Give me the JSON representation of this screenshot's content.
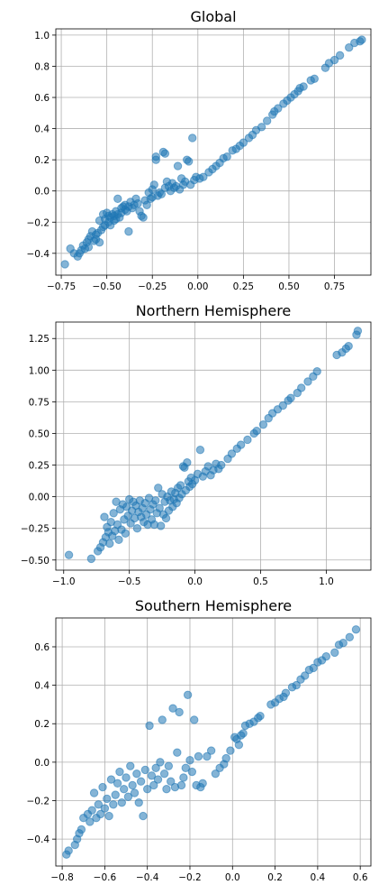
{
  "chart_data": [
    {
      "type": "scatter",
      "title": "Global",
      "xlim": [
        -0.78,
        0.95
      ],
      "ylim": [
        -0.54,
        1.04
      ],
      "xticks": [
        -0.75,
        -0.5,
        -0.25,
        0.0,
        0.25,
        0.5,
        0.75
      ],
      "xtick_labels": [
        "−0.75",
        "−0.50",
        "−0.25",
        "0.00",
        "0.25",
        "0.50",
        "0.75"
      ],
      "yticks": [
        -0.4,
        -0.2,
        0.0,
        0.2,
        0.4,
        0.6,
        0.8,
        1.0
      ],
      "ytick_labels": [
        "−0.4",
        "−0.2",
        "0.0",
        "0.2",
        "0.4",
        "0.6",
        "0.8",
        "1.0"
      ],
      "grid": true,
      "color": "#1f77b4",
      "points": [
        [
          -0.73,
          -0.47
        ],
        [
          -0.7,
          -0.37
        ],
        [
          -0.68,
          -0.4
        ],
        [
          -0.66,
          -0.42
        ],
        [
          -0.65,
          -0.4
        ],
        [
          -0.64,
          -0.38
        ],
        [
          -0.63,
          -0.35
        ],
        [
          -0.62,
          -0.37
        ],
        [
          -0.61,
          -0.33
        ],
        [
          -0.6,
          -0.36
        ],
        [
          -0.6,
          -0.31
        ],
        [
          -0.59,
          -0.29
        ],
        [
          -0.58,
          -0.26
        ],
        [
          -0.57,
          -0.32
        ],
        [
          -0.56,
          -0.28
        ],
        [
          -0.56,
          -0.31
        ],
        [
          -0.55,
          -0.27
        ],
        [
          -0.54,
          -0.19
        ],
        [
          -0.54,
          -0.33
        ],
        [
          -0.53,
          -0.25
        ],
        [
          -0.52,
          -0.23
        ],
        [
          -0.52,
          -0.15
        ],
        [
          -0.51,
          -0.22
        ],
        [
          -0.51,
          -0.18
        ],
        [
          -0.5,
          -0.14
        ],
        [
          -0.49,
          -0.16
        ],
        [
          -0.49,
          -0.2
        ],
        [
          -0.48,
          -0.17
        ],
        [
          -0.48,
          -0.22
        ],
        [
          -0.47,
          -0.15
        ],
        [
          -0.46,
          -0.19
        ],
        [
          -0.46,
          -0.16
        ],
        [
          -0.45,
          -0.18
        ],
        [
          -0.45,
          -0.13
        ],
        [
          -0.44,
          -0.15
        ],
        [
          -0.44,
          -0.05
        ],
        [
          -0.43,
          -0.17
        ],
        [
          -0.42,
          -0.14
        ],
        [
          -0.42,
          -0.11
        ],
        [
          -0.41,
          -0.1
        ],
        [
          -0.4,
          -0.12
        ],
        [
          -0.4,
          -0.09
        ],
        [
          -0.39,
          -0.13
        ],
        [
          -0.38,
          -0.26
        ],
        [
          -0.38,
          -0.1
        ],
        [
          -0.37,
          -0.07
        ],
        [
          -0.36,
          -0.11
        ],
        [
          -0.35,
          -0.09
        ],
        [
          -0.34,
          -0.05
        ],
        [
          -0.33,
          -0.08
        ],
        [
          -0.32,
          -0.13
        ],
        [
          -0.31,
          -0.16
        ],
        [
          -0.3,
          -0.17
        ],
        [
          -0.29,
          -0.06
        ],
        [
          -0.28,
          -0.09
        ],
        [
          -0.27,
          -0.01
        ],
        [
          -0.26,
          -0.05
        ],
        [
          -0.25,
          0.01
        ],
        [
          -0.25,
          -0.04
        ],
        [
          -0.24,
          0.04
        ],
        [
          -0.23,
          0.2
        ],
        [
          -0.23,
          0.22
        ],
        [
          -0.22,
          -0.03
        ],
        [
          -0.21,
          -0.01
        ],
        [
          -0.2,
          -0.02
        ],
        [
          -0.19,
          0.25
        ],
        [
          -0.18,
          0.24
        ],
        [
          -0.18,
          0.02
        ],
        [
          -0.17,
          0.06
        ],
        [
          -0.16,
          0.03
        ],
        [
          -0.15,
          0.0
        ],
        [
          -0.14,
          0.05
        ],
        [
          -0.13,
          0.02
        ],
        [
          -0.12,
          0.03
        ],
        [
          -0.11,
          0.16
        ],
        [
          -0.1,
          0.01
        ],
        [
          -0.09,
          0.08
        ],
        [
          -0.08,
          0.04
        ],
        [
          -0.07,
          0.06
        ],
        [
          -0.06,
          0.2
        ],
        [
          -0.05,
          0.19
        ],
        [
          -0.04,
          0.04
        ],
        [
          -0.03,
          0.34
        ],
        [
          -0.02,
          0.07
        ],
        [
          -0.01,
          0.09
        ],
        [
          0.01,
          0.08
        ],
        [
          0.03,
          0.09
        ],
        [
          0.06,
          0.12
        ],
        [
          0.08,
          0.14
        ],
        [
          0.1,
          0.16
        ],
        [
          0.12,
          0.18
        ],
        [
          0.14,
          0.21
        ],
        [
          0.16,
          0.22
        ],
        [
          0.19,
          0.26
        ],
        [
          0.21,
          0.27
        ],
        [
          0.23,
          0.29
        ],
        [
          0.25,
          0.31
        ],
        [
          0.28,
          0.34
        ],
        [
          0.3,
          0.36
        ],
        [
          0.32,
          0.39
        ],
        [
          0.35,
          0.41
        ],
        [
          0.38,
          0.45
        ],
        [
          0.41,
          0.49
        ],
        [
          0.42,
          0.51
        ],
        [
          0.44,
          0.53
        ],
        [
          0.47,
          0.56
        ],
        [
          0.49,
          0.58
        ],
        [
          0.51,
          0.6
        ],
        [
          0.53,
          0.62
        ],
        [
          0.55,
          0.64
        ],
        [
          0.56,
          0.66
        ],
        [
          0.58,
          0.67
        ],
        [
          0.62,
          0.71
        ],
        [
          0.64,
          0.72
        ],
        [
          0.7,
          0.79
        ],
        [
          0.72,
          0.82
        ],
        [
          0.75,
          0.84
        ],
        [
          0.78,
          0.87
        ],
        [
          0.83,
          0.92
        ],
        [
          0.86,
          0.95
        ],
        [
          0.89,
          0.96
        ],
        [
          0.9,
          0.97
        ]
      ]
    },
    {
      "type": "scatter",
      "title": "Northern Hemisphere",
      "xlim": [
        -1.06,
        1.34
      ],
      "ylim": [
        -0.58,
        1.38
      ],
      "xticks": [
        -1.0,
        -0.5,
        0.0,
        0.5,
        1.0
      ],
      "xtick_labels": [
        "−1.0",
        "−0.5",
        "0.0",
        "0.5",
        "1.0"
      ],
      "yticks": [
        -0.5,
        -0.25,
        0.0,
        0.25,
        0.5,
        0.75,
        1.0,
        1.25
      ],
      "ytick_labels": [
        "−0.50",
        "−0.25",
        "0.00",
        "0.25",
        "0.50",
        "0.75",
        "1.00",
        "1.25"
      ],
      "grid": true,
      "color": "#1f77b4",
      "points": [
        [
          -0.96,
          -0.46
        ],
        [
          -0.79,
          -0.49
        ],
        [
          -0.74,
          -0.43
        ],
        [
          -0.72,
          -0.4
        ],
        [
          -0.7,
          -0.36
        ],
        [
          -0.69,
          -0.16
        ],
        [
          -0.68,
          -0.32
        ],
        [
          -0.67,
          -0.24
        ],
        [
          -0.66,
          -0.28
        ],
        [
          -0.65,
          -0.37
        ],
        [
          -0.64,
          -0.2
        ],
        [
          -0.63,
          -0.31
        ],
        [
          -0.62,
          -0.13
        ],
        [
          -0.61,
          -0.27
        ],
        [
          -0.6,
          -0.04
        ],
        [
          -0.59,
          -0.22
        ],
        [
          -0.58,
          -0.34
        ],
        [
          -0.57,
          -0.1
        ],
        [
          -0.56,
          -0.26
        ],
        [
          -0.55,
          -0.06
        ],
        [
          -0.54,
          -0.18
        ],
        [
          -0.53,
          -0.29
        ],
        [
          -0.52,
          -0.08
        ],
        [
          -0.51,
          -0.15
        ],
        [
          -0.5,
          -0.02
        ],
        [
          -0.49,
          -0.21
        ],
        [
          -0.48,
          -0.11
        ],
        [
          -0.47,
          -0.04
        ],
        [
          -0.46,
          -0.17
        ],
        [
          -0.45,
          -0.07
        ],
        [
          -0.44,
          -0.25
        ],
        [
          -0.43,
          -0.12
        ],
        [
          -0.42,
          -0.03
        ],
        [
          -0.41,
          -0.16
        ],
        [
          -0.4,
          -0.09
        ],
        [
          -0.39,
          -0.2
        ],
        [
          -0.38,
          -0.05
        ],
        [
          -0.37,
          -0.14
        ],
        [
          -0.36,
          -0.22
        ],
        [
          -0.35,
          -0.01
        ],
        [
          -0.34,
          -0.1
        ],
        [
          -0.33,
          -0.18
        ],
        [
          -0.32,
          -0.06
        ],
        [
          -0.31,
          -0.22
        ],
        [
          -0.3,
          -0.03
        ],
        [
          -0.29,
          -0.13
        ],
        [
          -0.28,
          0.07
        ],
        [
          -0.27,
          -0.09
        ],
        [
          -0.26,
          -0.23
        ],
        [
          -0.25,
          0.02
        ],
        [
          -0.24,
          -0.14
        ],
        [
          -0.23,
          -0.04
        ],
        [
          -0.22,
          -0.17
        ],
        [
          -0.21,
          0.0
        ],
        [
          -0.2,
          -0.11
        ],
        [
          -0.19,
          -0.03
        ],
        [
          -0.18,
          0.04
        ],
        [
          -0.17,
          -0.08
        ],
        [
          -0.16,
          -0.02
        ],
        [
          -0.15,
          0.03
        ],
        [
          -0.14,
          -0.05
        ],
        [
          -0.13,
          0.07
        ],
        [
          -0.12,
          -0.01
        ],
        [
          -0.11,
          0.09
        ],
        [
          -0.1,
          0.02
        ],
        [
          -0.09,
          0.24
        ],
        [
          -0.08,
          0.23
        ],
        [
          -0.07,
          0.05
        ],
        [
          -0.06,
          0.27
        ],
        [
          -0.05,
          0.12
        ],
        [
          -0.04,
          0.08
        ],
        [
          -0.03,
          0.15
        ],
        [
          -0.02,
          0.1
        ],
        [
          0.0,
          0.13
        ],
        [
          0.02,
          0.18
        ],
        [
          0.04,
          0.37
        ],
        [
          0.06,
          0.16
        ],
        [
          0.08,
          0.2
        ],
        [
          0.1,
          0.24
        ],
        [
          0.12,
          0.17
        ],
        [
          0.14,
          0.21
        ],
        [
          0.16,
          0.26
        ],
        [
          0.18,
          0.22
        ],
        [
          0.2,
          0.25
        ],
        [
          0.25,
          0.3
        ],
        [
          0.28,
          0.34
        ],
        [
          0.32,
          0.38
        ],
        [
          0.35,
          0.41
        ],
        [
          0.4,
          0.45
        ],
        [
          0.45,
          0.5
        ],
        [
          0.47,
          0.52
        ],
        [
          0.52,
          0.57
        ],
        [
          0.56,
          0.62
        ],
        [
          0.59,
          0.66
        ],
        [
          0.63,
          0.69
        ],
        [
          0.67,
          0.72
        ],
        [
          0.71,
          0.76
        ],
        [
          0.73,
          0.78
        ],
        [
          0.78,
          0.82
        ],
        [
          0.81,
          0.86
        ],
        [
          0.86,
          0.91
        ],
        [
          0.9,
          0.95
        ],
        [
          0.93,
          0.99
        ],
        [
          1.08,
          1.12
        ],
        [
          1.12,
          1.14
        ],
        [
          1.15,
          1.17
        ],
        [
          1.17,
          1.19
        ],
        [
          1.23,
          1.28
        ],
        [
          1.24,
          1.31
        ]
      ]
    },
    {
      "type": "scatter",
      "title": "Southern Hemisphere",
      "xlim": [
        -0.83,
        0.65
      ],
      "ylim": [
        -0.54,
        0.75
      ],
      "xticks": [
        -0.8,
        -0.6,
        -0.4,
        -0.2,
        0.0,
        0.2,
        0.4,
        0.6
      ],
      "xtick_labels": [
        "−0.8",
        "−0.6",
        "−0.4",
        "−0.2",
        "0.0",
        "0.2",
        "0.4",
        "0.6"
      ],
      "yticks": [
        -0.4,
        -0.2,
        0.0,
        0.2,
        0.4,
        0.6
      ],
      "ytick_labels": [
        "−0.4",
        "−0.2",
        "0.0",
        "0.2",
        "0.4",
        "0.6"
      ],
      "grid": true,
      "color": "#1f77b4",
      "points": [
        [
          -0.78,
          -0.48
        ],
        [
          -0.77,
          -0.46
        ],
        [
          -0.74,
          -0.43
        ],
        [
          -0.73,
          -0.4
        ],
        [
          -0.72,
          -0.37
        ],
        [
          -0.71,
          -0.35
        ],
        [
          -0.7,
          -0.29
        ],
        [
          -0.68,
          -0.27
        ],
        [
          -0.67,
          -0.31
        ],
        [
          -0.66,
          -0.25
        ],
        [
          -0.65,
          -0.16
        ],
        [
          -0.64,
          -0.29
        ],
        [
          -0.63,
          -0.22
        ],
        [
          -0.62,
          -0.27
        ],
        [
          -0.61,
          -0.13
        ],
        [
          -0.6,
          -0.24
        ],
        [
          -0.59,
          -0.19
        ],
        [
          -0.58,
          -0.28
        ],
        [
          -0.57,
          -0.09
        ],
        [
          -0.56,
          -0.22
        ],
        [
          -0.55,
          -0.17
        ],
        [
          -0.54,
          -0.11
        ],
        [
          -0.53,
          -0.05
        ],
        [
          -0.52,
          -0.21
        ],
        [
          -0.51,
          -0.14
        ],
        [
          -0.5,
          -0.08
        ],
        [
          -0.49,
          -0.18
        ],
        [
          -0.48,
          -0.02
        ],
        [
          -0.47,
          -0.12
        ],
        [
          -0.46,
          -0.16
        ],
        [
          -0.45,
          -0.06
        ],
        [
          -0.44,
          -0.21
        ],
        [
          -0.43,
          -0.1
        ],
        [
          -0.42,
          -0.28
        ],
        [
          -0.41,
          -0.04
        ],
        [
          -0.4,
          -0.14
        ],
        [
          -0.39,
          0.19
        ],
        [
          -0.38,
          -0.07
        ],
        [
          -0.37,
          -0.12
        ],
        [
          -0.36,
          -0.03
        ],
        [
          -0.35,
          -0.09
        ],
        [
          -0.34,
          0.0
        ],
        [
          -0.33,
          0.22
        ],
        [
          -0.32,
          -0.06
        ],
        [
          -0.31,
          -0.14
        ],
        [
          -0.3,
          -0.02
        ],
        [
          -0.29,
          -0.1
        ],
        [
          -0.28,
          0.28
        ],
        [
          -0.27,
          -0.13
        ],
        [
          -0.26,
          0.05
        ],
        [
          -0.25,
          0.26
        ],
        [
          -0.24,
          -0.12
        ],
        [
          -0.23,
          -0.08
        ],
        [
          -0.22,
          -0.03
        ],
        [
          -0.21,
          0.35
        ],
        [
          -0.2,
          0.01
        ],
        [
          -0.19,
          -0.05
        ],
        [
          -0.18,
          0.22
        ],
        [
          -0.17,
          -0.12
        ],
        [
          -0.16,
          0.03
        ],
        [
          -0.15,
          -0.13
        ],
        [
          -0.14,
          -0.11
        ],
        [
          -0.12,
          0.03
        ],
        [
          -0.1,
          0.06
        ],
        [
          -0.08,
          -0.06
        ],
        [
          -0.06,
          -0.03
        ],
        [
          -0.04,
          -0.01
        ],
        [
          -0.03,
          0.02
        ],
        [
          -0.01,
          0.06
        ],
        [
          0.01,
          0.13
        ],
        [
          0.02,
          0.12
        ],
        [
          0.03,
          0.09
        ],
        [
          0.04,
          0.14
        ],
        [
          0.05,
          0.15
        ],
        [
          0.06,
          0.19
        ],
        [
          0.08,
          0.2
        ],
        [
          0.1,
          0.21
        ],
        [
          0.12,
          0.23
        ],
        [
          0.13,
          0.24
        ],
        [
          0.18,
          0.3
        ],
        [
          0.2,
          0.31
        ],
        [
          0.22,
          0.33
        ],
        [
          0.24,
          0.34
        ],
        [
          0.25,
          0.36
        ],
        [
          0.28,
          0.39
        ],
        [
          0.3,
          0.4
        ],
        [
          0.32,
          0.43
        ],
        [
          0.34,
          0.45
        ],
        [
          0.36,
          0.48
        ],
        [
          0.38,
          0.49
        ],
        [
          0.4,
          0.52
        ],
        [
          0.42,
          0.53
        ],
        [
          0.44,
          0.55
        ],
        [
          0.48,
          0.57
        ],
        [
          0.5,
          0.61
        ],
        [
          0.52,
          0.62
        ],
        [
          0.55,
          0.65
        ],
        [
          0.58,
          0.69
        ]
      ]
    }
  ]
}
